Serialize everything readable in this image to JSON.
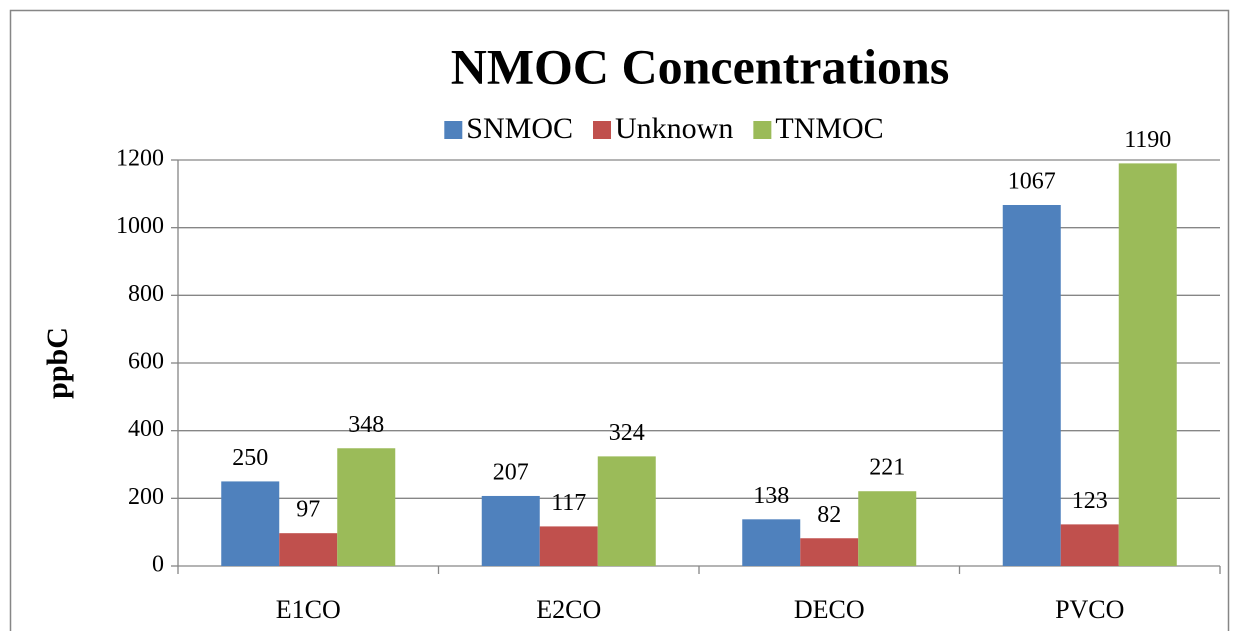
{
  "chart_data": {
    "type": "bar",
    "title": "NMOC Concentrations",
    "y_label": "ppbC",
    "categories": [
      "E1CO",
      "E2CO",
      "DECO",
      "PVCO"
    ],
    "series": [
      {
        "name": "SNMOC",
        "color": "#4f81bd",
        "values": [
          250,
          207,
          138,
          1067
        ]
      },
      {
        "name": "Unknown",
        "color": "#c0504d",
        "values": [
          97,
          117,
          82,
          123
        ]
      },
      {
        "name": "TNMOC",
        "color": "#9bbb59",
        "values": [
          348,
          324,
          221,
          1190
        ]
      }
    ],
    "ylim": [
      0,
      1200
    ],
    "yticks": [
      0,
      200,
      400,
      600,
      800,
      1000,
      1200
    ],
    "grid": true,
    "legend": "top"
  }
}
